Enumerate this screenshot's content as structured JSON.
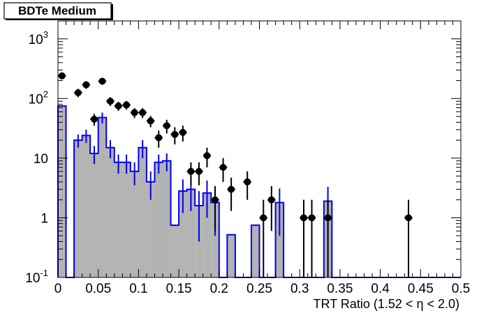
{
  "chart_data": {
    "type": "histogram",
    "title": "BDTe Medium",
    "xlabel": "TRT Ratio (1.52 <  η < 2.0)",
    "ylabel": "",
    "xlim": [
      0,
      0.5
    ],
    "ylim": [
      0.1,
      2000
    ],
    "y_scale": "log",
    "grid": false,
    "bin_width": 0.01,
    "x_ticks": [
      0,
      0.05,
      0.1,
      0.15,
      0.2,
      0.25,
      0.3,
      0.35,
      0.4,
      0.45,
      0.5
    ],
    "x_tick_labels": [
      "0",
      "0.05",
      "0.1",
      "0.15",
      "0.2",
      "0.25",
      "0.3",
      "0.35",
      "0.4",
      "0.45",
      "0.5"
    ],
    "y_ticks": [
      0.1,
      1,
      10,
      100,
      1000
    ],
    "y_tick_labels": [
      {
        "base": "10",
        "exp": "-1"
      },
      {
        "base": "1",
        "exp": ""
      },
      {
        "base": "10",
        "exp": ""
      },
      {
        "base": "10",
        "exp": "2"
      },
      {
        "base": "10",
        "exp": "3"
      }
    ],
    "series": [
      {
        "style": "filled-histogram",
        "fill_color": "#b3b3b3",
        "line_color": "#0000ee",
        "bins": [
          {
            "x": 0.0,
            "y": 75,
            "err": 0
          },
          {
            "x": 0.01,
            "y": 0,
            "err": 0
          },
          {
            "x": 0.02,
            "y": 20,
            "err": 5
          },
          {
            "x": 0.03,
            "y": 24,
            "err": 6
          },
          {
            "x": 0.04,
            "y": 12,
            "err": 4
          },
          {
            "x": 0.05,
            "y": 48,
            "err": 10
          },
          {
            "x": 0.06,
            "y": 15,
            "err": 5
          },
          {
            "x": 0.07,
            "y": 8.5,
            "err": 3
          },
          {
            "x": 0.08,
            "y": 8.5,
            "err": 3
          },
          {
            "x": 0.09,
            "y": 6,
            "err": 2.5
          },
          {
            "x": 0.1,
            "y": 15,
            "err": 5
          },
          {
            "x": 0.11,
            "y": 4,
            "err": 2
          },
          {
            "x": 0.12,
            "y": 8.5,
            "err": 3
          },
          {
            "x": 0.13,
            "y": 9,
            "err": 3
          },
          {
            "x": 0.14,
            "y": 0.75,
            "err": 0
          },
          {
            "x": 0.15,
            "y": 2.8,
            "err": 1.6
          },
          {
            "x": 0.16,
            "y": 3,
            "err": 1.7
          },
          {
            "x": 0.17,
            "y": 1.6,
            "err": 1.2
          },
          {
            "x": 0.18,
            "y": 2.6,
            "err": 1.6
          },
          {
            "x": 0.19,
            "y": 1.8,
            "err": 1.3
          },
          {
            "x": 0.2,
            "y": 0,
            "err": 0
          },
          {
            "x": 0.21,
            "y": 0.52,
            "err": 0
          },
          {
            "x": 0.22,
            "y": 0,
            "err": 0
          },
          {
            "x": 0.23,
            "y": 0,
            "err": 0
          },
          {
            "x": 0.24,
            "y": 0.75,
            "err": 0
          },
          {
            "x": 0.25,
            "y": 0,
            "err": 0
          },
          {
            "x": 0.26,
            "y": 0,
            "err": 0
          },
          {
            "x": 0.27,
            "y": 1.8,
            "err": 1.3
          },
          {
            "x": 0.28,
            "y": 0,
            "err": 0
          },
          {
            "x": 0.29,
            "y": 0,
            "err": 0
          },
          {
            "x": 0.3,
            "y": 0,
            "err": 0
          },
          {
            "x": 0.31,
            "y": 0,
            "err": 0
          },
          {
            "x": 0.32,
            "y": 0,
            "err": 0
          },
          {
            "x": 0.33,
            "y": 1.9,
            "err": 1.4
          }
        ]
      },
      {
        "style": "points-with-errors",
        "color": "#000000",
        "points": [
          {
            "x": 0.005,
            "y": 240,
            "err": 30
          },
          {
            "x": 0.025,
            "y": 125,
            "err": 20
          },
          {
            "x": 0.035,
            "y": 170,
            "err": 25
          },
          {
            "x": 0.045,
            "y": 45,
            "err": 10
          },
          {
            "x": 0.055,
            "y": 195,
            "err": 25
          },
          {
            "x": 0.065,
            "y": 90,
            "err": 15
          },
          {
            "x": 0.075,
            "y": 75,
            "err": 13
          },
          {
            "x": 0.085,
            "y": 78,
            "err": 13
          },
          {
            "x": 0.095,
            "y": 58,
            "err": 11
          },
          {
            "x": 0.105,
            "y": 58,
            "err": 11
          },
          {
            "x": 0.115,
            "y": 42,
            "err": 9
          },
          {
            "x": 0.125,
            "y": 22,
            "err": 7
          },
          {
            "x": 0.135,
            "y": 35,
            "err": 9
          },
          {
            "x": 0.145,
            "y": 25,
            "err": 8
          },
          {
            "x": 0.155,
            "y": 27,
            "err": 8
          },
          {
            "x": 0.165,
            "y": 6,
            "err": 2.5
          },
          {
            "x": 0.175,
            "y": 6,
            "err": 2.5
          },
          {
            "x": 0.185,
            "y": 11,
            "err": 4
          },
          {
            "x": 0.195,
            "y": 2,
            "err": 1.4
          },
          {
            "x": 0.205,
            "y": 7,
            "err": 3
          },
          {
            "x": 0.215,
            "y": 3,
            "err": 1.7
          },
          {
            "x": 0.235,
            "y": 4,
            "err": 2
          },
          {
            "x": 0.255,
            "y": 1,
            "err": 1
          },
          {
            "x": 0.265,
            "y": 2,
            "err": 1.4
          },
          {
            "x": 0.305,
            "y": 1,
            "err": 1
          },
          {
            "x": 0.315,
            "y": 1,
            "err": 1
          },
          {
            "x": 0.335,
            "y": 1,
            "err": 1
          },
          {
            "x": 0.435,
            "y": 1,
            "err": 1
          }
        ]
      }
    ]
  }
}
